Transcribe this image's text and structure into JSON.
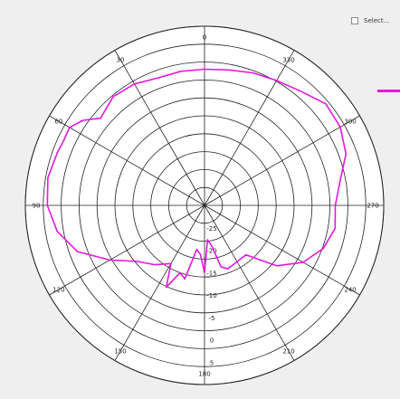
{
  "controls": {
    "select_label": "Select..."
  },
  "colors": {
    "background": "#efefef",
    "plot_background": "#ffffff",
    "grid": "#222222",
    "series": "#e617dc",
    "axis_text": "#222222"
  },
  "chart_data": {
    "type": "line",
    "subtype": "polar",
    "title": "",
    "ring_count": 10,
    "radial_tick_labels": [
      "-25",
      "-20",
      "-15",
      "-10",
      "-5",
      "0",
      "5"
    ],
    "r_range": [
      -30,
      10
    ],
    "angle_direction": "counterclockwise",
    "angle_zero": "top",
    "angle_labels": [
      {
        "angle": 0,
        "label": "0"
      },
      {
        "angle": 30,
        "label": "30"
      },
      {
        "angle": 60,
        "label": "60"
      },
      {
        "angle": 90,
        "label": "90"
      },
      {
        "angle": 120,
        "label": "120"
      },
      {
        "angle": 150,
        "label": "150"
      },
      {
        "angle": 180,
        "label": "180"
      },
      {
        "angle": 210,
        "label": "210"
      },
      {
        "angle": 240,
        "label": "240"
      },
      {
        "angle": 270,
        "label": "270"
      },
      {
        "angle": 300,
        "label": "300"
      },
      {
        "angle": 330,
        "label": "330"
      }
    ],
    "series": [
      {
        "color": "#e617dc",
        "angles": [
          0,
          10,
          20,
          30,
          40,
          50,
          55,
          60,
          65,
          70,
          80,
          90,
          100,
          110,
          120,
          130,
          140,
          150,
          155,
          160,
          165,
          170,
          175,
          180,
          185,
          190,
          195,
          200,
          210,
          220,
          230,
          240,
          250,
          260,
          270,
          280,
          290,
          300,
          310,
          320,
          330,
          340,
          350
        ],
        "values": [
          0.4,
          0.4,
          0.3,
          1.3,
          1.7,
          0.3,
          3.1,
          4.8,
          4.6,
          4.9,
          5.5,
          5.1,
          3.4,
          0.2,
          -5.6,
          -10.5,
          -12.7,
          -15.0,
          -9.8,
          -14.0,
          -13.0,
          -20.0,
          -19.1,
          -15.0,
          -22.3,
          -20.9,
          -15.8,
          -14.9,
          -15.5,
          -15.6,
          -9.0,
          -4.6,
          -1.8,
          -0.4,
          -0.8,
          0.7,
          3.6,
          5.0,
          5.3,
          3.3,
          2.2,
          1.5,
          0.7
        ]
      }
    ],
    "grid": true,
    "legend_position": "top-right"
  }
}
